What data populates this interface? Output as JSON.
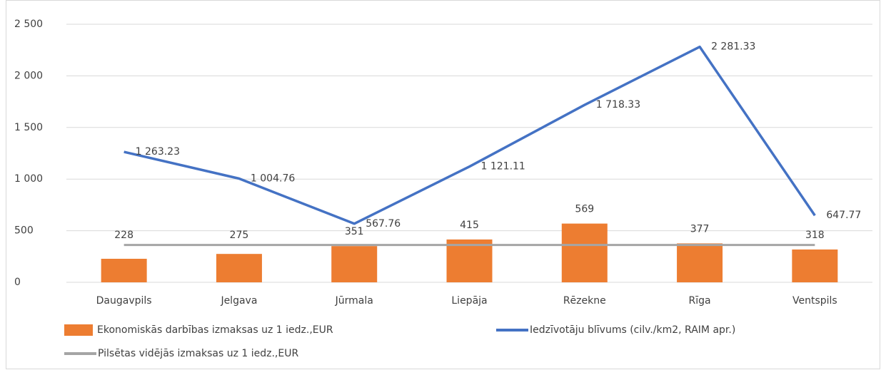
{
  "chart_data": {
    "type": "bar-line",
    "categories": [
      "Daugavpils",
      "Jelgava",
      "Jūrmala",
      "Liepāja",
      "Rēzekne",
      "Rīga",
      "Ventspils"
    ],
    "series": [
      {
        "name": "Ekonomiskās darbības izmaksas uz 1 iedz.,EUR",
        "type": "bar",
        "color": "#ed7d31",
        "values": [
          228,
          275,
          351,
          415,
          569,
          377,
          318
        ]
      },
      {
        "name": "Iedzīvotāju blīvums (cilv./km2, RAIM apr.)",
        "type": "line",
        "color": "#4472c4",
        "values": [
          1263.23,
          1004.76,
          567.76,
          1121.11,
          1718.33,
          2281.33,
          647.77
        ],
        "value_labels": [
          "1 263.23",
          "1 004.76",
          "567.76",
          "1 121.11",
          "1 718.33",
          "2 281.33",
          "647.77"
        ]
      },
      {
        "name": "Pilsētas vidējās izmaksas uz 1 iedz.,EUR",
        "type": "line",
        "color": "#a5a5a5",
        "values": [
          362,
          362,
          362,
          362,
          362,
          362,
          362
        ]
      }
    ],
    "ylim": [
      0,
      2500
    ],
    "yticks": [
      0,
      500,
      {
        "value": 1000,
        "label": "1 000"
      },
      {
        "value": 1500,
        "label": "1 500"
      },
      {
        "value": 2000,
        "label": "2 000"
      },
      {
        "value": 2500,
        "label": "2 500"
      }
    ],
    "grid": true
  }
}
